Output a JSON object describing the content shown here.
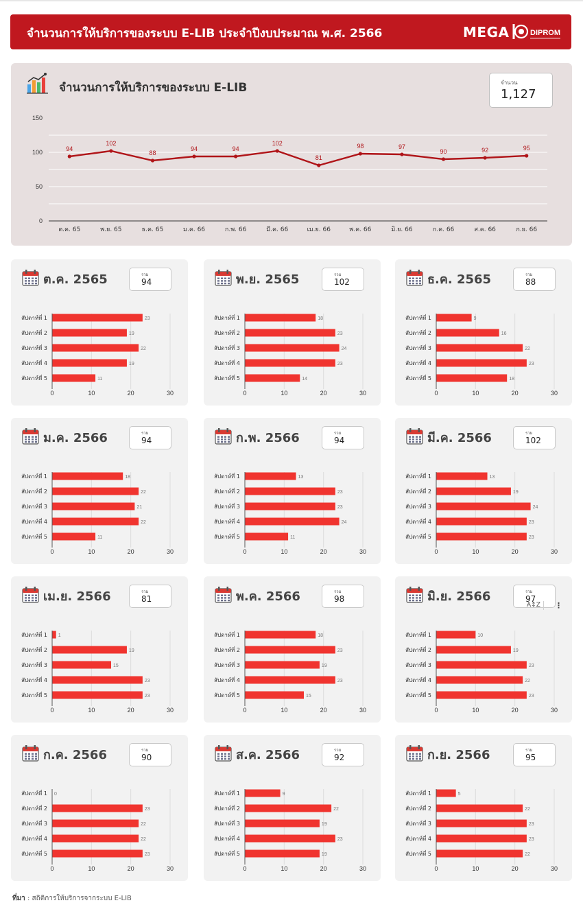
{
  "header": {
    "title": "จำนวนการให้บริการของระบบ E-LIB ประจำปีงบประมาณ พ.ศ. 2566",
    "logo_mega": "MEGA",
    "logo_dip": "DIPROM"
  },
  "main": {
    "title": "จำนวนการให้บริการของระบบ E-LIB",
    "total_label": "จำนวน",
    "total_value": "1,127"
  },
  "colors": {
    "accent": "#c0181f",
    "line": "#b01519",
    "bar": "#f0342f",
    "panel": "#e7dfdf",
    "card": "#f2f2f2"
  },
  "chart_data": [
    {
      "type": "line",
      "x": [
        "ต.ค. 65",
        "พ.ย. 65",
        "ธ.ค. 65",
        "ม.ค. 66",
        "ก.พ. 66",
        "มี.ค. 66",
        "เม.ย. 66",
        "พ.ค. 66",
        "มิ.ย. 66",
        "ก.ค. 66",
        "ส.ค. 66",
        "ก.ย. 66"
      ],
      "values": [
        94,
        102,
        88,
        94,
        94,
        102,
        81,
        98,
        97,
        90,
        92,
        95
      ],
      "yticks": [
        0,
        50,
        100,
        150
      ],
      "ylim": [
        0,
        150
      ],
      "data_labels": true
    },
    {
      "type": "bar",
      "title": "ต.ค. 2565",
      "sum_label": "รวม",
      "sum": "94",
      "categories": [
        "สัปดาห์ที่ 1",
        "สัปดาห์ที่ 2",
        "สัปดาห์ที่ 3",
        "สัปดาห์ที่ 4",
        "สัปดาห์ที่ 5"
      ],
      "values": [
        23,
        19,
        22,
        19,
        11
      ],
      "xticks": [
        0,
        10,
        20,
        30
      ],
      "xlim": [
        0,
        30
      ]
    },
    {
      "type": "bar",
      "title": "พ.ย. 2565",
      "sum_label": "รวม",
      "sum": "102",
      "categories": [
        "สัปดาห์ที่ 1",
        "สัปดาห์ที่ 2",
        "สัปดาห์ที่ 3",
        "สัปดาห์ที่ 4",
        "สัปดาห์ที่ 5"
      ],
      "values": [
        18,
        23,
        24,
        23,
        14
      ],
      "xticks": [
        0,
        10,
        20,
        30
      ],
      "xlim": [
        0,
        30
      ]
    },
    {
      "type": "bar",
      "title": "ธ.ค. 2565",
      "sum_label": "รวม",
      "sum": "88",
      "categories": [
        "สัปดาห์ที่ 1",
        "สัปดาห์ที่ 2",
        "สัปดาห์ที่ 3",
        "สัปดาห์ที่ 4",
        "สัปดาห์ที่ 5"
      ],
      "values": [
        9,
        16,
        22,
        23,
        18
      ],
      "xticks": [
        0,
        10,
        20,
        30
      ],
      "xlim": [
        0,
        30
      ]
    },
    {
      "type": "bar",
      "title": "ม.ค. 2566",
      "sum_label": "รวม",
      "sum": "94",
      "categories": [
        "สัปดาห์ที่ 1",
        "สัปดาห์ที่ 2",
        "สัปดาห์ที่ 3",
        "สัปดาห์ที่ 4",
        "สัปดาห์ที่ 5"
      ],
      "values": [
        18,
        22,
        21,
        22,
        11
      ],
      "xticks": [
        0,
        10,
        20,
        30
      ],
      "xlim": [
        0,
        30
      ]
    },
    {
      "type": "bar",
      "title": "ก.พ. 2566",
      "sum_label": "รวม",
      "sum": "94",
      "categories": [
        "สัปดาห์ที่ 1",
        "สัปดาห์ที่ 2",
        "สัปดาห์ที่ 3",
        "สัปดาห์ที่ 4",
        "สัปดาห์ที่ 5"
      ],
      "values": [
        13,
        23,
        23,
        24,
        11
      ],
      "xticks": [
        0,
        10,
        20,
        30
      ],
      "xlim": [
        0,
        30
      ]
    },
    {
      "type": "bar",
      "title": "มี.ค. 2566",
      "sum_label": "รวม",
      "sum": "102",
      "categories": [
        "สัปดาห์ที่ 1",
        "สัปดาห์ที่ 2",
        "สัปดาห์ที่ 3",
        "สัปดาห์ที่ 4",
        "สัปดาห์ที่ 5"
      ],
      "values": [
        13,
        19,
        24,
        23,
        23
      ],
      "xticks": [
        0,
        10,
        20,
        30
      ],
      "xlim": [
        0,
        30
      ]
    },
    {
      "type": "bar",
      "title": "เม.ย. 2566",
      "sum_label": "รวม",
      "sum": "81",
      "categories": [
        "สัปดาห์ที่ 1",
        "สัปดาห์ที่ 2",
        "สัปดาห์ที่ 3",
        "สัปดาห์ที่ 4",
        "สัปดาห์ที่ 5"
      ],
      "values": [
        1,
        19,
        15,
        23,
        23
      ],
      "xticks": [
        0,
        10,
        20,
        30
      ],
      "xlim": [
        0,
        30
      ]
    },
    {
      "type": "bar",
      "title": "พ.ค. 2566",
      "sum_label": "รวม",
      "sum": "98",
      "categories": [
        "สัปดาห์ที่ 1",
        "สัปดาห์ที่ 2",
        "สัปดาห์ที่ 3",
        "สัปดาห์ที่ 4",
        "สัปดาห์ที่ 5"
      ],
      "values": [
        18,
        23,
        19,
        23,
        15
      ],
      "xticks": [
        0,
        10,
        20,
        30
      ],
      "xlim": [
        0,
        30
      ]
    },
    {
      "type": "bar",
      "title": "มิ.ย. 2566",
      "sum_label": "รวม",
      "sum": "97",
      "categories": [
        "สัปดาห์ที่ 1",
        "สัปดาห์ที่ 2",
        "สัปดาห์ที่ 3",
        "สัปดาห์ที่ 4",
        "สัปดาห์ที่ 5"
      ],
      "values": [
        10,
        19,
        23,
        22,
        23
      ],
      "xticks": [
        0,
        10,
        20,
        30
      ],
      "xlim": [
        0,
        30
      ]
    },
    {
      "type": "bar",
      "title": "ก.ค. 2566",
      "sum_label": "รวม",
      "sum": "90",
      "categories": [
        "สัปดาห์ที่ 1",
        "สัปดาห์ที่ 2",
        "สัปดาห์ที่ 3",
        "สัปดาห์ที่ 4",
        "สัปดาห์ที่ 5"
      ],
      "values": [
        0,
        23,
        22,
        22,
        23
      ],
      "xticks": [
        0,
        10,
        20,
        30
      ],
      "xlim": [
        0,
        30
      ]
    },
    {
      "type": "bar",
      "title": "ส.ค. 2566",
      "sum_label": "รวม",
      "sum": "92",
      "categories": [
        "สัปดาห์ที่ 1",
        "สัปดาห์ที่ 2",
        "สัปดาห์ที่ 3",
        "สัปดาห์ที่ 4",
        "สัปดาห์ที่ 5"
      ],
      "values": [
        9,
        22,
        19,
        23,
        19
      ],
      "xticks": [
        0,
        10,
        20,
        30
      ],
      "xlim": [
        0,
        30
      ]
    },
    {
      "type": "bar",
      "title": "ก.ย. 2566",
      "sum_label": "รวม",
      "sum": "95",
      "categories": [
        "สัปดาห์ที่ 1",
        "สัปดาห์ที่ 2",
        "สัปดาห์ที่ 3",
        "สัปดาห์ที่ 4",
        "สัปดาห์ที่ 5"
      ],
      "values": [
        5,
        22,
        23,
        23,
        22
      ],
      "xticks": [
        0,
        10,
        20,
        30
      ],
      "xlim": [
        0,
        30
      ]
    }
  ],
  "chart_toolbar": {
    "sort_icon_label": "A↕Z",
    "more_icon_label": "⋮"
  },
  "footer": {
    "source_label": "ที่มา",
    "source_text": " : สถิติการให้บริการจากระบบ E-LIB"
  }
}
